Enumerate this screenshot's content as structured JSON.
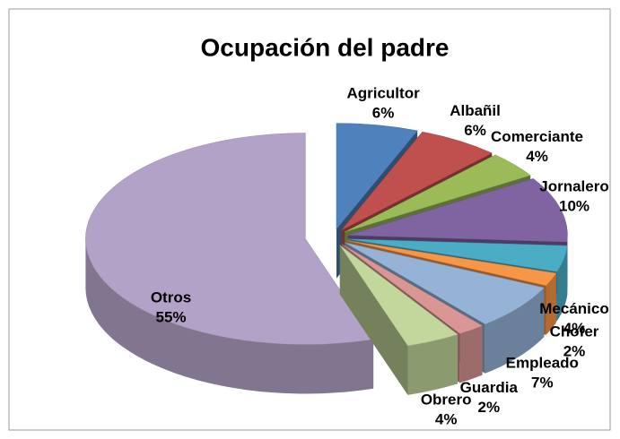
{
  "chart_data": {
    "type": "pie",
    "title": "Ocupación del padre",
    "categories": [
      "Agricultor",
      "Albañil",
      "Comerciante",
      "Jornalero",
      "Mecánico",
      "Chofer",
      "Empleado",
      "Guardia",
      "Obrero",
      "Otros"
    ],
    "values": [
      6,
      6,
      4,
      10,
      4,
      2,
      7,
      2,
      4,
      55
    ],
    "value_labels": [
      "6%",
      "6%",
      "4%",
      "10%",
      "4%",
      "2%",
      "7%",
      "2%",
      "4%",
      "55%"
    ],
    "colors": [
      "#4f81bd",
      "#c0504d",
      "#9bbb59",
      "#8064a2",
      "#4bacc6",
      "#f79646",
      "#95b3d7",
      "#d99694",
      "#c3d69b",
      "#b3a2c7"
    ]
  }
}
